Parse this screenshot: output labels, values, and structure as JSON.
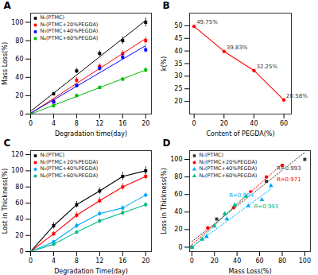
{
  "chart_data": [
    {
      "type": "regression",
      "title": "A",
      "x_label": "Degradation time(day)",
      "y_label": "Mass Loss(%)",
      "x": [
        0,
        4,
        8,
        12,
        16,
        20
      ],
      "series": [
        {
          "name": "N₁(PTMC)",
          "color": "#000000",
          "marker": "square",
          "line_style": "solid",
          "values": [
            0,
            22,
            47,
            66,
            80,
            100
          ],
          "errors": [
            0,
            2,
            3,
            3,
            4,
            5
          ]
        },
        {
          "name": "N₂(PTMC+20%PEGDA)",
          "color": "#ff0000",
          "marker": "square",
          "line_style": "solid",
          "values": [
            0,
            14,
            37,
            52,
            66,
            80
          ],
          "errors": [
            0,
            2,
            3,
            3,
            3,
            4
          ]
        },
        {
          "name": "N₃(PTMC+40%PEGDA)",
          "color": "#0000ff",
          "marker": "square",
          "line_style": "solid",
          "values": [
            0,
            13,
            31,
            50,
            62,
            70
          ],
          "errors": [
            0,
            2,
            2,
            3,
            3,
            3
          ]
        },
        {
          "name": "N₄(PTMC+60%PEGDA)",
          "color": "#00bb00",
          "marker": "square",
          "line_style": "solid",
          "values": [
            0,
            9,
            20,
            29,
            38,
            48
          ],
          "errors": [
            0,
            1,
            2,
            2,
            2,
            3
          ]
        }
      ],
      "xlim": [
        0,
        21
      ],
      "ylim": [
        0,
        110
      ],
      "xticks": [
        0,
        4,
        8,
        12,
        16,
        20
      ],
      "yticks": [
        0,
        20,
        40,
        60,
        80,
        100
      ],
      "legend": "upper left",
      "grid": false
    },
    {
      "type": "line",
      "title": "B",
      "x_label": "Content of PEGDA(%)",
      "y_label": "k(%)",
      "x": [
        0,
        20,
        40,
        60
      ],
      "series": [
        {
          "color": "#ff0000",
          "marker": "circle",
          "line_style": "solid",
          "values": [
            49.75,
            39.83,
            32.25,
            20.58
          ],
          "value_labels": [
            "49.75%",
            "39.83%",
            "32.25%",
            "20.58%"
          ]
        }
      ],
      "xlim": [
        -3,
        65
      ],
      "ylim": [
        15,
        55
      ],
      "xticks": [
        0,
        20,
        40,
        60
      ],
      "yticks": [
        20,
        25,
        30,
        35,
        40,
        45,
        50
      ],
      "data_labels": true,
      "grid": false
    },
    {
      "type": "line",
      "title": "C",
      "x_label": "Degradation Time(day)",
      "y_label": "Lost in Thickness(%)",
      "x": [
        0,
        4,
        8,
        12,
        16,
        20
      ],
      "series": [
        {
          "name": "N₁(PTMC)",
          "color": "#000000",
          "marker": "square",
          "line_style": "solid",
          "values": [
            0,
            32,
            58,
            75,
            93,
            100
          ],
          "errors": [
            0,
            4,
            4,
            4,
            5,
            5
          ]
        },
        {
          "name": "N₂(PTMC+20%PEGDA)",
          "color": "#ff0000",
          "marker": "square",
          "line_style": "solid",
          "values": [
            0,
            22,
            45,
            63,
            80,
            93
          ],
          "errors": [
            0,
            3,
            4,
            4,
            4,
            4
          ]
        },
        {
          "name": "N₃(PTMC+40%PEGDA)",
          "color": "#00aaff",
          "marker": "circle",
          "line_style": "solid",
          "values": [
            0,
            12,
            32,
            47,
            54,
            70
          ],
          "errors": [
            0,
            2,
            3,
            3,
            3,
            3
          ]
        },
        {
          "name": "N₄(PTMC+60%PEGDA)",
          "color": "#00bb88",
          "marker": "circle",
          "line_style": "solid",
          "values": [
            0,
            9,
            24,
            38,
            48,
            58
          ],
          "errors": [
            0,
            2,
            2,
            3,
            3,
            3
          ]
        }
      ],
      "xlim": [
        0,
        21
      ],
      "ylim": [
        0,
        125
      ],
      "xticks": [
        0,
        4,
        8,
        12,
        16,
        20
      ],
      "yticks": [
        0,
        20,
        40,
        60,
        80,
        100,
        120
      ],
      "legend": "upper left",
      "grid": false
    },
    {
      "type": "regression",
      "title": "D",
      "x_label": "Mass Loss(%)",
      "y_label": "Loss in Thickness(%)",
      "series": [
        {
          "name": "N₁(PTMC)",
          "color": "#333333",
          "marker": "square",
          "line_style": "dotted",
          "x": [
            0,
            22,
            47,
            66,
            80,
            100
          ],
          "values": [
            0,
            32,
            58,
            75,
            93,
            100
          ],
          "annotation": {
            "text": "R=0.993",
            "x": 75,
            "y": 88
          }
        },
        {
          "name": "N₂(PTMC+20%PEGDA)",
          "color": "#ff0000",
          "marker": "circle",
          "line_style": "dotted",
          "x": [
            0,
            14,
            37,
            52,
            66,
            80
          ],
          "values": [
            0,
            22,
            45,
            63,
            80,
            93
          ],
          "annotation": {
            "text": "R=0.971",
            "x": 75,
            "y": 75
          }
        },
        {
          "name": "N₃(PTMC+40%PEGDA)",
          "color": "#00aaff",
          "marker": "triangle",
          "line_style": "dotted",
          "x": [
            0,
            13,
            31,
            50,
            62,
            70
          ],
          "values": [
            0,
            12,
            32,
            47,
            54,
            70
          ],
          "annotation": {
            "text": "R=0.994",
            "x": 33,
            "y": 57
          }
        },
        {
          "name": "N₄(PTMC+60%PEGDA)",
          "color": "#00bb88",
          "marker": "triangle",
          "line_style": "dotted",
          "x": [
            0,
            9,
            20,
            29,
            38,
            48
          ],
          "values": [
            0,
            9,
            24,
            38,
            48,
            58
          ],
          "annotation": {
            "text": "R=0.993",
            "x": 55,
            "y": 44
          }
        }
      ],
      "xlim": [
        -2,
        105
      ],
      "ylim": [
        -5,
        110
      ],
      "xticks": [
        0,
        20,
        40,
        60,
        80,
        100
      ],
      "yticks": [
        0,
        20,
        40,
        60,
        80,
        100
      ],
      "legend": "upper left",
      "grid": false
    }
  ]
}
